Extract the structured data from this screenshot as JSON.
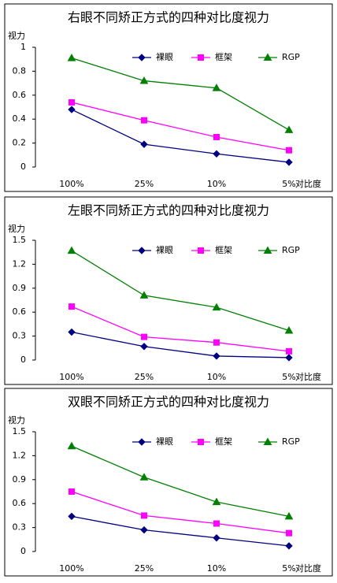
{
  "chart_data": [
    {
      "type": "line",
      "title": "右眼不同矫正方式的四种对比度视力",
      "y_label": "视力",
      "x_label": "对比度",
      "categories": [
        "100%",
        "25%",
        "10%",
        "5%"
      ],
      "ylim": [
        0,
        1
      ],
      "yticks": [
        0,
        0.2,
        0.4,
        0.6,
        0.8,
        1
      ],
      "series": [
        {
          "name": "裸眼",
          "color": "#000080",
          "values": [
            0.48,
            0.19,
            0.11,
            0.04
          ]
        },
        {
          "name": "框架",
          "color": "#ff00ff",
          "values": [
            0.54,
            0.39,
            0.25,
            0.14
          ]
        },
        {
          "name": "RGP",
          "color": "#008000",
          "values": [
            0.91,
            0.72,
            0.66,
            0.31
          ]
        }
      ]
    },
    {
      "type": "line",
      "title": "左眼不同矫正方式的四种对比度视力",
      "y_label": "视力",
      "x_label": "对比度",
      "categories": [
        "100%",
        "25%",
        "10%",
        "5%"
      ],
      "ylim": [
        0,
        1.5
      ],
      "yticks": [
        0,
        0.3,
        0.6,
        0.9,
        1.2,
        1.5
      ],
      "series": [
        {
          "name": "裸眼",
          "color": "#000080",
          "values": [
            0.35,
            0.17,
            0.05,
            0.03
          ]
        },
        {
          "name": "框架",
          "color": "#ff00ff",
          "values": [
            0.67,
            0.29,
            0.22,
            0.11
          ]
        },
        {
          "name": "RGP",
          "color": "#008000",
          "values": [
            1.37,
            0.81,
            0.66,
            0.37
          ]
        }
      ]
    },
    {
      "type": "line",
      "title": "双眼不同矫正方式的四种对比度视力",
      "y_label": "视力",
      "x_label": "对比度",
      "categories": [
        "100%",
        "25%",
        "10%",
        "5%"
      ],
      "ylim": [
        0,
        1.5
      ],
      "yticks": [
        0,
        0.3,
        0.6,
        0.9,
        1.2,
        1.5
      ],
      "series": [
        {
          "name": "裸眼",
          "color": "#000080",
          "values": [
            0.44,
            0.27,
            0.17,
            0.07
          ]
        },
        {
          "name": "框架",
          "color": "#ff00ff",
          "values": [
            0.75,
            0.45,
            0.35,
            0.23
          ]
        },
        {
          "name": "RGP",
          "color": "#008000",
          "values": [
            1.32,
            0.93,
            0.62,
            0.44
          ]
        }
      ]
    }
  ]
}
